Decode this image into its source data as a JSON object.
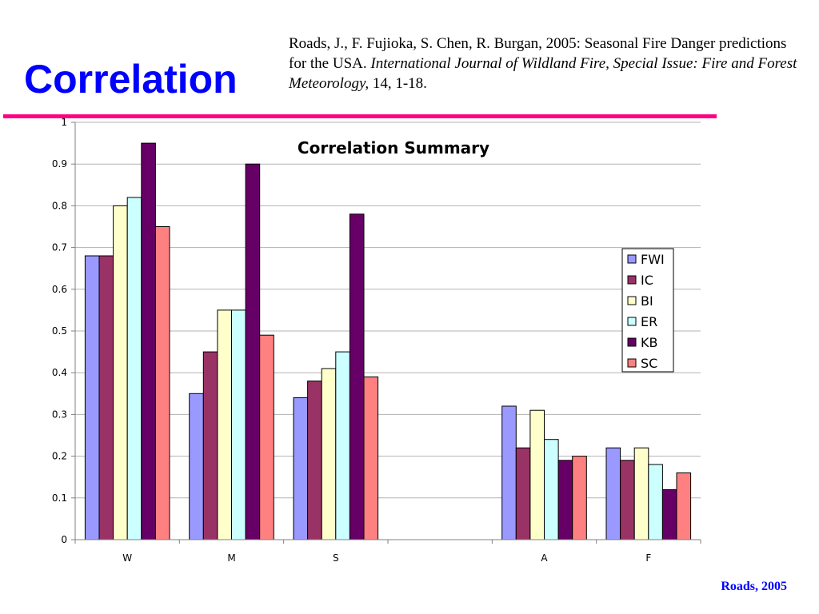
{
  "slide": {
    "title": "Correlation",
    "citation": {
      "plain": "Roads, J., F. Fujioka, S. Chen, R. Burgan, 2005: Seasonal Fire Danger predictions for the USA. ",
      "italic": "International Journal of Wildland Fire, Special Issue: Fire and Forest Meteorology,",
      "tail": " 14, 1-18."
    },
    "footer": "Roads, 2005",
    "accent_color": "#ff0080",
    "title_color": "#0000ff"
  },
  "chart_data": {
    "type": "bar",
    "title": "Correlation Summary",
    "xlabel": "",
    "ylabel": "",
    "categories": [
      "W",
      "M",
      "S",
      "",
      "A",
      "F"
    ],
    "ylim": [
      0,
      1
    ],
    "yticks": [
      "0",
      "0.1",
      "0.2",
      "0.3",
      "0.4",
      "0.5",
      "0.6",
      "0.7",
      "0.8",
      "0.9",
      "1"
    ],
    "grid": true,
    "legend_position": "right",
    "series": [
      {
        "name": "FWI",
        "color": "#9999ff",
        "values": [
          0.68,
          0.35,
          0.34,
          null,
          0.32,
          0.22
        ]
      },
      {
        "name": "IC",
        "color": "#993366",
        "values": [
          0.68,
          0.45,
          0.38,
          null,
          0.22,
          0.19
        ]
      },
      {
        "name": "BI",
        "color": "#ffffcc",
        "values": [
          0.8,
          0.55,
          0.41,
          null,
          0.31,
          0.22
        ]
      },
      {
        "name": "ER",
        "color": "#ccffff",
        "values": [
          0.82,
          0.55,
          0.45,
          null,
          0.24,
          0.18
        ]
      },
      {
        "name": "KB",
        "color": "#660066",
        "values": [
          0.95,
          0.9,
          0.78,
          null,
          0.19,
          0.12
        ]
      },
      {
        "name": "SC",
        "color": "#ff8080",
        "values": [
          0.75,
          0.49,
          0.39,
          null,
          0.2,
          0.16
        ]
      }
    ]
  }
}
